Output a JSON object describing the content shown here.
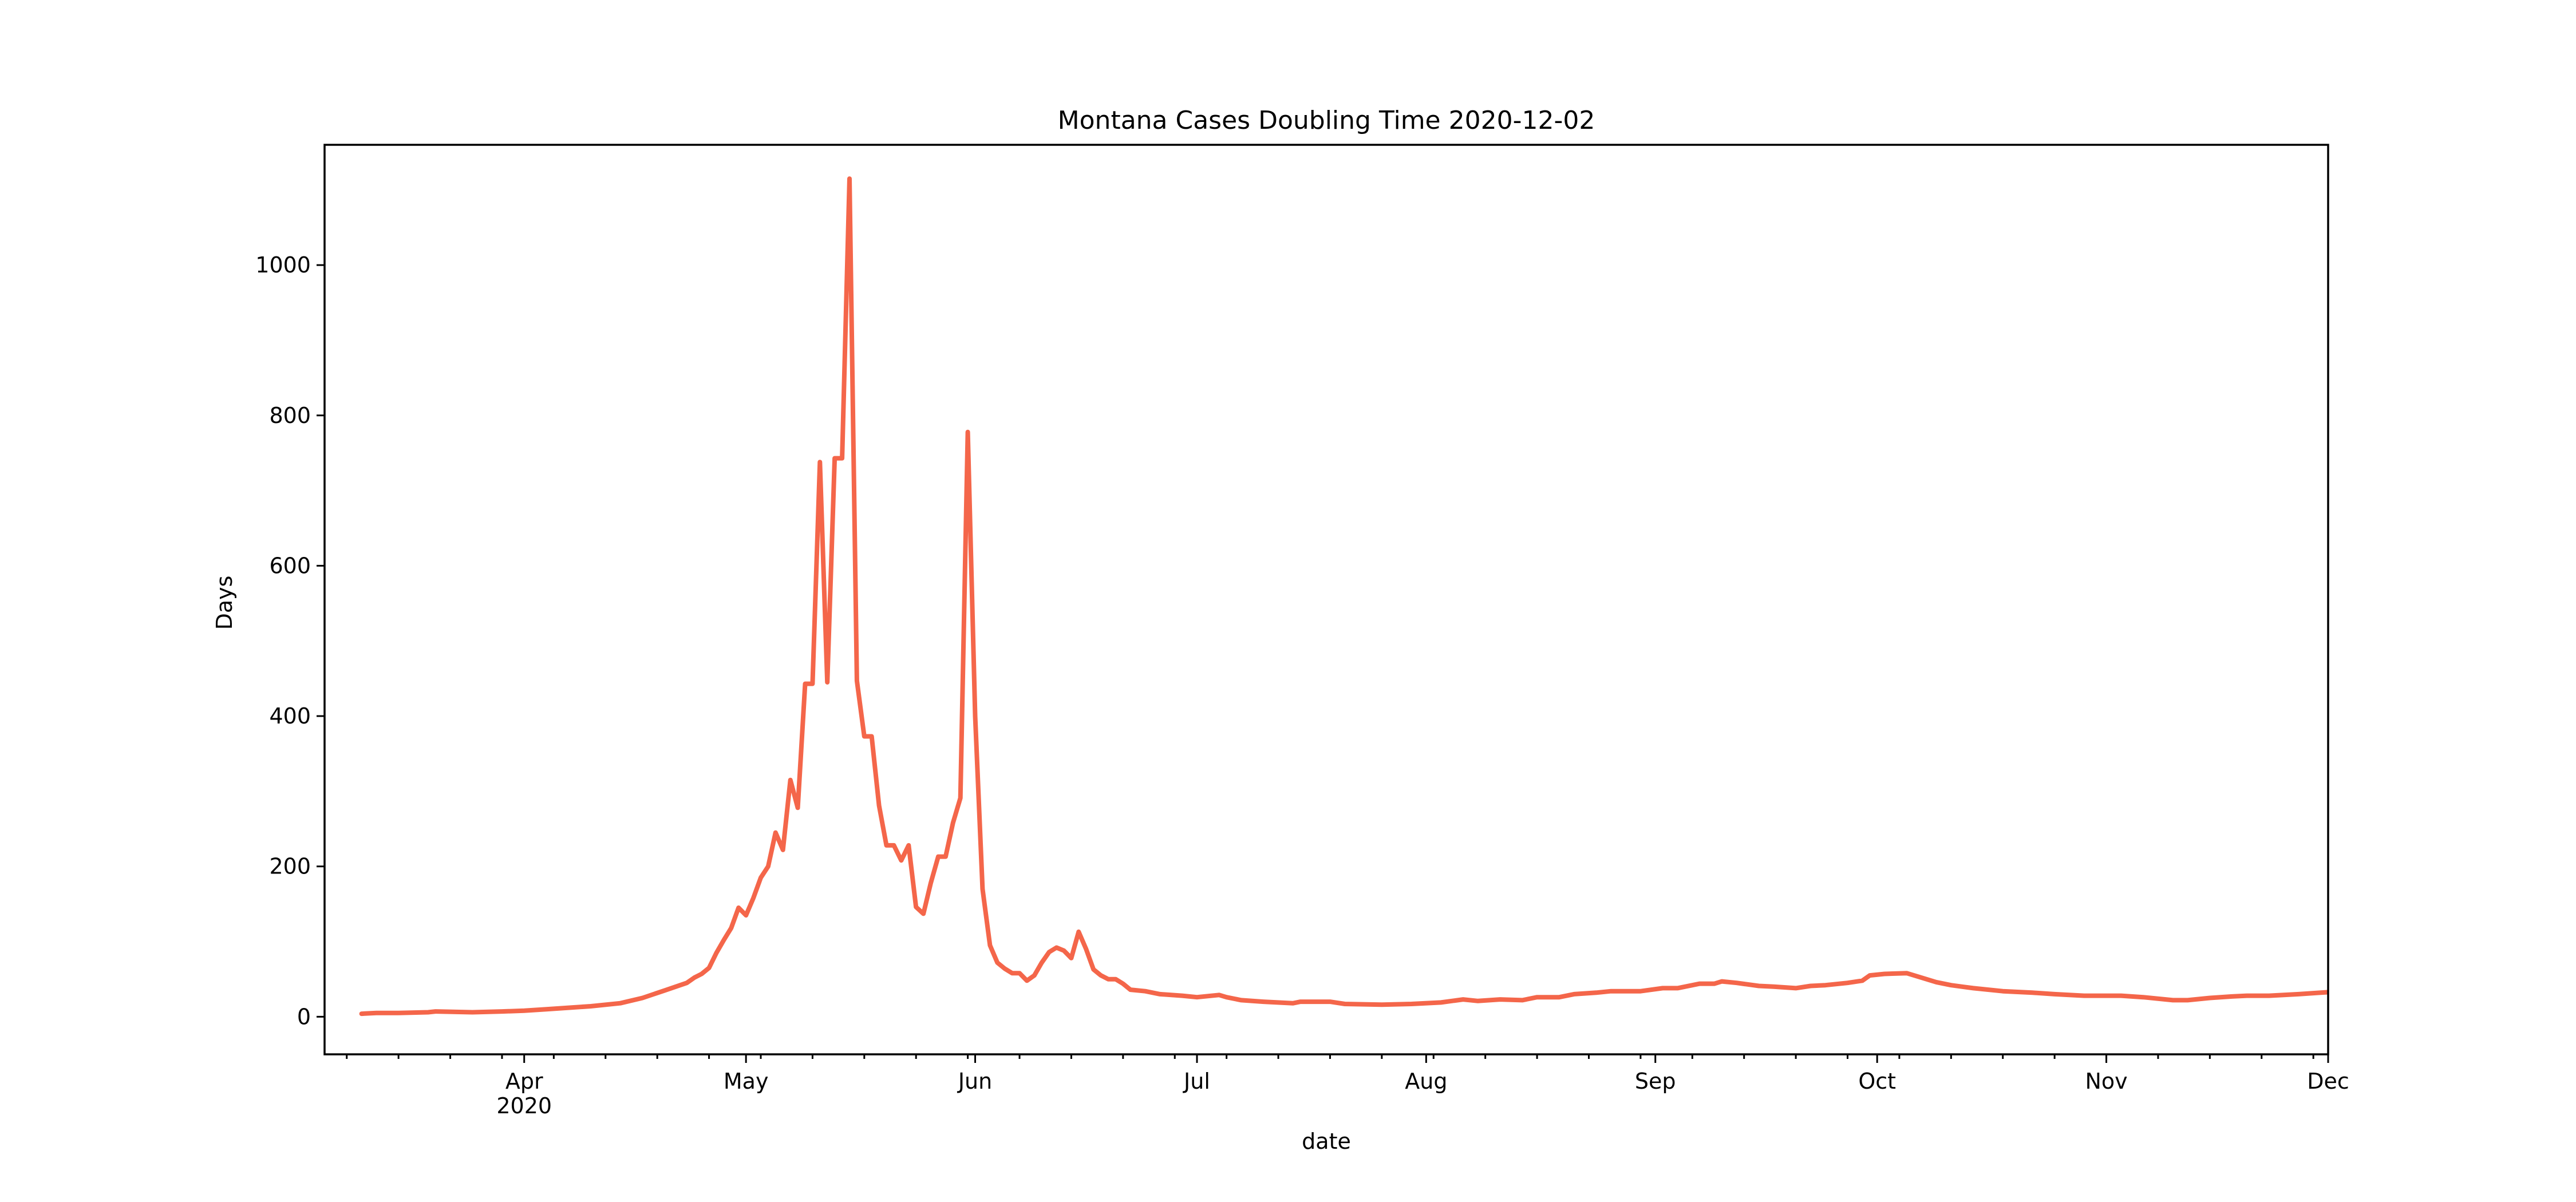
{
  "chart_data": {
    "type": "line",
    "title": "Montana Cases Doubling Time 2020-12-02",
    "xlabel": "date",
    "ylabel": "Days",
    "xlim": [
      "2020-03-05",
      "2020-12-01"
    ],
    "ylim": [
      -50,
      1160
    ],
    "y_ticks": [
      0,
      200,
      400,
      600,
      800,
      1000
    ],
    "x_ticks": [
      {
        "date": "2020-04-01",
        "label": "Apr",
        "sublabel": "2020"
      },
      {
        "date": "2020-05-01",
        "label": "May"
      },
      {
        "date": "2020-06-01",
        "label": "Jun"
      },
      {
        "date": "2020-07-01",
        "label": "Jul"
      },
      {
        "date": "2020-08-01",
        "label": "Aug"
      },
      {
        "date": "2020-09-01",
        "label": "Sep"
      },
      {
        "date": "2020-10-01",
        "label": "Oct"
      },
      {
        "date": "2020-11-01",
        "label": "Nov"
      },
      {
        "date": "2020-12-01",
        "label": "Dec"
      }
    ],
    "minor_x_ticks": [
      "2020-03-08",
      "2020-03-15",
      "2020-03-22",
      "2020-03-29",
      "2020-04-05",
      "2020-04-12",
      "2020-04-19",
      "2020-04-26",
      "2020-05-03",
      "2020-05-10",
      "2020-05-17",
      "2020-05-24",
      "2020-05-31",
      "2020-06-07",
      "2020-06-14",
      "2020-06-21",
      "2020-06-28",
      "2020-07-05",
      "2020-07-12",
      "2020-07-19",
      "2020-07-26",
      "2020-08-02",
      "2020-08-09",
      "2020-08-16",
      "2020-08-23",
      "2020-08-30",
      "2020-09-06",
      "2020-09-13",
      "2020-09-20",
      "2020-09-27",
      "2020-10-04",
      "2020-10-11",
      "2020-10-18",
      "2020-10-25",
      "2020-11-01",
      "2020-11-08",
      "2020-11-15",
      "2020-11-22",
      "2020-11-29"
    ],
    "grid": false,
    "color": "#f4664a",
    "series": [
      {
        "points": [
          [
            "2020-03-10",
            4
          ],
          [
            "2020-03-12",
            5
          ],
          [
            "2020-03-15",
            5
          ],
          [
            "2020-03-19",
            6
          ],
          [
            "2020-03-20",
            7
          ],
          [
            "2020-03-25",
            6
          ],
          [
            "2020-03-29",
            7
          ],
          [
            "2020-04-01",
            8
          ],
          [
            "2020-04-04",
            10
          ],
          [
            "2020-04-07",
            12
          ],
          [
            "2020-04-10",
            14
          ],
          [
            "2020-04-14",
            18
          ],
          [
            "2020-04-17",
            25
          ],
          [
            "2020-04-20",
            35
          ],
          [
            "2020-04-23",
            45
          ],
          [
            "2020-04-24",
            52
          ],
          [
            "2020-04-25",
            57
          ],
          [
            "2020-04-26",
            65
          ],
          [
            "2020-04-27",
            85
          ],
          [
            "2020-04-28",
            102
          ],
          [
            "2020-04-29",
            118
          ],
          [
            "2020-04-30",
            145
          ],
          [
            "2020-05-01",
            135
          ],
          [
            "2020-05-02",
            158
          ],
          [
            "2020-05-03",
            185
          ],
          [
            "2020-05-04",
            200
          ],
          [
            "2020-05-05",
            245
          ],
          [
            "2020-05-06",
            222
          ],
          [
            "2020-05-07",
            315
          ],
          [
            "2020-05-08",
            278
          ],
          [
            "2020-05-09",
            443
          ],
          [
            "2020-05-10",
            443
          ],
          [
            "2020-05-11",
            738
          ],
          [
            "2020-05-12",
            445
          ],
          [
            "2020-05-13",
            743
          ],
          [
            "2020-05-14",
            743
          ],
          [
            "2020-05-15",
            1115
          ],
          [
            "2020-05-16",
            447
          ],
          [
            "2020-05-17",
            373
          ],
          [
            "2020-05-18",
            373
          ],
          [
            "2020-05-19",
            281
          ],
          [
            "2020-05-20",
            228
          ],
          [
            "2020-05-21",
            228
          ],
          [
            "2020-05-22",
            208
          ],
          [
            "2020-05-23",
            228
          ],
          [
            "2020-05-24",
            146
          ],
          [
            "2020-05-25",
            137
          ],
          [
            "2020-05-26",
            178
          ],
          [
            "2020-05-27",
            213
          ],
          [
            "2020-05-28",
            213
          ],
          [
            "2020-05-29",
            258
          ],
          [
            "2020-05-30",
            291
          ],
          [
            "2020-05-31",
            778
          ],
          [
            "2020-06-01",
            400
          ],
          [
            "2020-06-02",
            170
          ],
          [
            "2020-06-03",
            95
          ],
          [
            "2020-06-04",
            72
          ],
          [
            "2020-06-05",
            64
          ],
          [
            "2020-06-06",
            58
          ],
          [
            "2020-06-07",
            58
          ],
          [
            "2020-06-08",
            48
          ],
          [
            "2020-06-09",
            55
          ],
          [
            "2020-06-10",
            72
          ],
          [
            "2020-06-11",
            86
          ],
          [
            "2020-06-12",
            92
          ],
          [
            "2020-06-13",
            88
          ],
          [
            "2020-06-14",
            78
          ],
          [
            "2020-06-15",
            113
          ],
          [
            "2020-06-16",
            90
          ],
          [
            "2020-06-17",
            63
          ],
          [
            "2020-06-18",
            55
          ],
          [
            "2020-06-19",
            50
          ],
          [
            "2020-06-20",
            50
          ],
          [
            "2020-06-21",
            44
          ],
          [
            "2020-06-22",
            36
          ],
          [
            "2020-06-24",
            34
          ],
          [
            "2020-06-26",
            30
          ],
          [
            "2020-06-29",
            28
          ],
          [
            "2020-07-01",
            26
          ],
          [
            "2020-07-04",
            29
          ],
          [
            "2020-07-05",
            26
          ],
          [
            "2020-07-07",
            22
          ],
          [
            "2020-07-10",
            20
          ],
          [
            "2020-07-14",
            18
          ],
          [
            "2020-07-15",
            20
          ],
          [
            "2020-07-19",
            20
          ],
          [
            "2020-07-21",
            17
          ],
          [
            "2020-07-26",
            16
          ],
          [
            "2020-07-30",
            17
          ],
          [
            "2020-08-03",
            19
          ],
          [
            "2020-08-06",
            23
          ],
          [
            "2020-08-08",
            21
          ],
          [
            "2020-08-11",
            23
          ],
          [
            "2020-08-14",
            22
          ],
          [
            "2020-08-16",
            26
          ],
          [
            "2020-08-19",
            26
          ],
          [
            "2020-08-21",
            30
          ],
          [
            "2020-08-24",
            32
          ],
          [
            "2020-08-26",
            34
          ],
          [
            "2020-08-30",
            34
          ],
          [
            "2020-09-02",
            38
          ],
          [
            "2020-09-04",
            38
          ],
          [
            "2020-09-07",
            44
          ],
          [
            "2020-09-09",
            44
          ],
          [
            "2020-09-10",
            47
          ],
          [
            "2020-09-12",
            45
          ],
          [
            "2020-09-15",
            41
          ],
          [
            "2020-09-17",
            40
          ],
          [
            "2020-09-20",
            38
          ],
          [
            "2020-09-22",
            41
          ],
          [
            "2020-09-24",
            42
          ],
          [
            "2020-09-27",
            45
          ],
          [
            "2020-09-29",
            48
          ],
          [
            "2020-09-30",
            55
          ],
          [
            "2020-10-02",
            57
          ],
          [
            "2020-10-05",
            58
          ],
          [
            "2020-10-07",
            52
          ],
          [
            "2020-10-09",
            46
          ],
          [
            "2020-10-11",
            42
          ],
          [
            "2020-10-14",
            38
          ],
          [
            "2020-10-18",
            34
          ],
          [
            "2020-10-22",
            32
          ],
          [
            "2020-10-25",
            30
          ],
          [
            "2020-10-29",
            28
          ],
          [
            "2020-10-31",
            28
          ],
          [
            "2020-11-03",
            28
          ],
          [
            "2020-11-06",
            26
          ],
          [
            "2020-11-10",
            22
          ],
          [
            "2020-11-12",
            22
          ],
          [
            "2020-11-15",
            25
          ],
          [
            "2020-11-18",
            27
          ],
          [
            "2020-11-20",
            28
          ],
          [
            "2020-11-23",
            28
          ],
          [
            "2020-11-27",
            30
          ],
          [
            "2020-11-30",
            32
          ],
          [
            "2020-12-03",
            34
          ]
        ]
      }
    ]
  }
}
